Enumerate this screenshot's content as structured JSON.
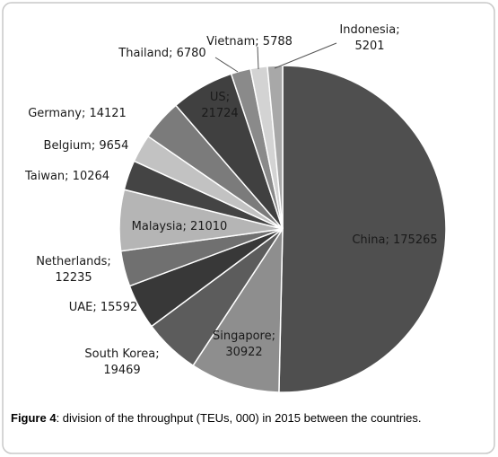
{
  "chart_data": {
    "type": "pie",
    "values": [
      175265,
      30922,
      19469,
      15592,
      12235,
      21010,
      10264,
      9654,
      14121,
      21724,
      6780,
      5788,
      5201
    ],
    "value_labels": [
      "China; 175265",
      "Singapore;\n30922",
      "South Korea;\n19469",
      "UAE; 15592",
      "Netherlands;\n12235",
      "Malaysia; 21010",
      "Taiwan; 10264",
      "Belgium; 9654",
      "Germany; 14121",
      "US;\n21724",
      "Thailand; 6780",
      "Vietnam; 5788",
      "Indonesia;\n5201"
    ],
    "colors": [
      "#4f4f4f",
      "#8e8e8e",
      "#5c5c5c",
      "#383838",
      "#707070",
      "#b5b5b5",
      "#444444",
      "#c2c2c2",
      "#7b7b7b",
      "#404040",
      "#8a8a8a",
      "#d3d3d3",
      "#a8a8a8"
    ]
  },
  "caption": {
    "figure": "Figure 4",
    "text": ": division of the throughput (TEUs, 000) in 2015 between the countries."
  }
}
